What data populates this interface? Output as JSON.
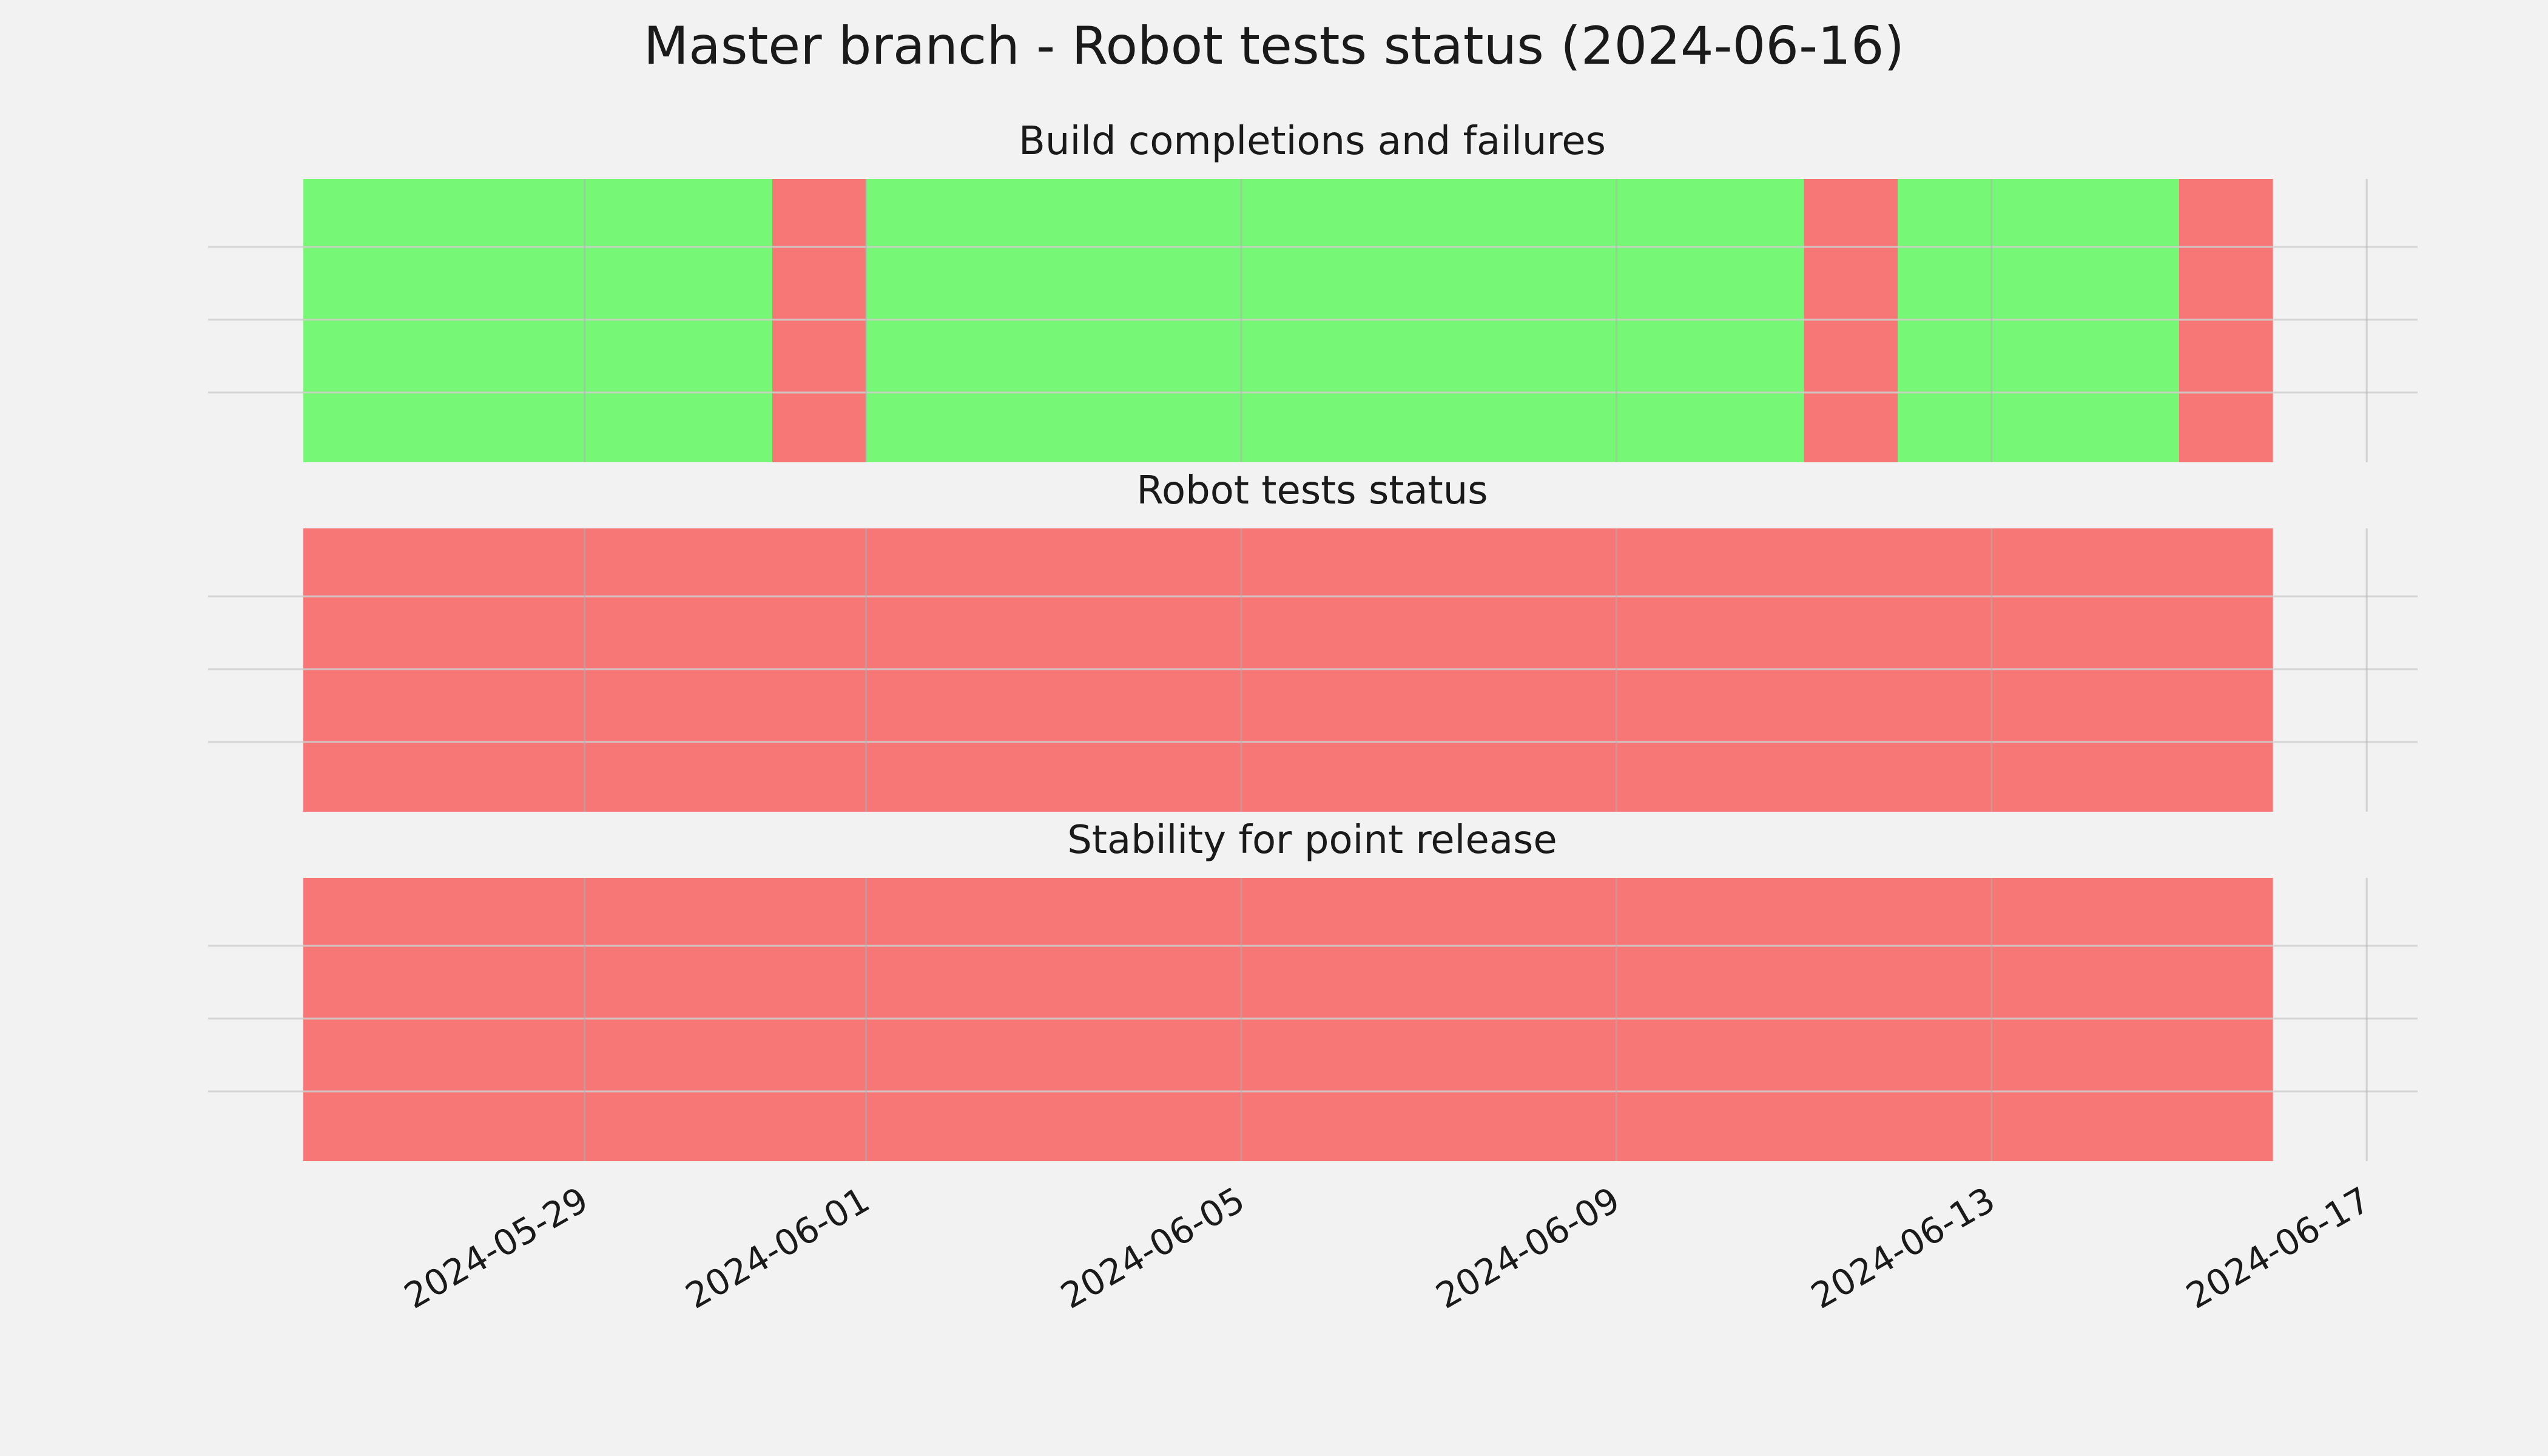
{
  "figure": {
    "title": "Master branch - Robot tests status (2024-06-16)"
  },
  "colors": {
    "background": "#f2f2f2",
    "success": "#76f776",
    "failure": "#f77676",
    "grid": "#cfcfcf",
    "text": "#1a1a1a"
  },
  "chart_data": [
    {
      "type": "timeline",
      "title": "Build completions and failures",
      "xlim": [
        "2024-05-26",
        "2024-06-17"
      ],
      "grid": true,
      "segments": [
        {
          "start": "2024-05-26",
          "end": "2024-05-31",
          "status": "success"
        },
        {
          "start": "2024-05-31",
          "end": "2024-06-01",
          "status": "failure"
        },
        {
          "start": "2024-06-01",
          "end": "2024-06-11",
          "status": "success"
        },
        {
          "start": "2024-06-11",
          "end": "2024-06-12",
          "status": "failure"
        },
        {
          "start": "2024-06-12",
          "end": "2024-06-15",
          "status": "success"
        },
        {
          "start": "2024-06-15",
          "end": "2024-06-16",
          "status": "failure"
        }
      ]
    },
    {
      "type": "timeline",
      "title": "Robot tests status",
      "xlim": [
        "2024-05-26",
        "2024-06-17"
      ],
      "grid": true,
      "segments": [
        {
          "start": "2024-05-26",
          "end": "2024-06-16",
          "status": "failure"
        }
      ]
    },
    {
      "type": "timeline",
      "title": "Stability for point release",
      "xlim": [
        "2024-05-26",
        "2024-06-17"
      ],
      "grid": true,
      "segments": [
        {
          "start": "2024-05-26",
          "end": "2024-06-16",
          "status": "failure"
        }
      ]
    }
  ],
  "x_axis": {
    "tick_labels": [
      "2024-05-29",
      "2024-06-01",
      "2024-06-05",
      "2024-06-09",
      "2024-06-13",
      "2024-06-17"
    ]
  }
}
